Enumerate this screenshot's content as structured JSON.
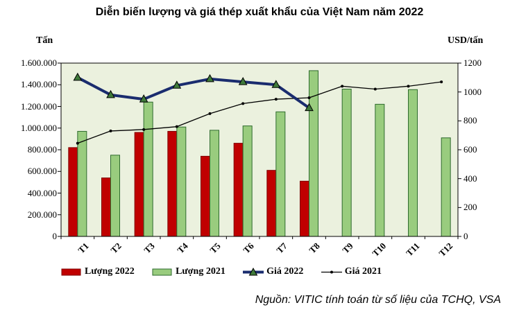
{
  "chart_data": {
    "type": "bar",
    "title": "Diễn biến lượng và giá thép xuất khẩu của Việt Nam năm 2022",
    "categories": [
      "T1",
      "T2",
      "T3",
      "T4",
      "T5",
      "T6",
      "T7",
      "T8",
      "T9",
      "T10",
      "T11",
      "T12"
    ],
    "left_axis": {
      "label": "Tấn",
      "min": 0,
      "max": 1600000,
      "tick_values": [
        0,
        200000,
        400000,
        600000,
        800000,
        1000000,
        1200000,
        1400000,
        1600000
      ],
      "tick_labels": [
        "0",
        "200.000",
        "400.000",
        "600.000",
        "800.000",
        "1.000.000",
        "1.200.000",
        "1.400.000",
        "1.600.000"
      ]
    },
    "right_axis": {
      "label": "USD/tấn",
      "min": 0,
      "max": 1200,
      "tick_values": [
        0,
        200,
        400,
        600,
        800,
        1000,
        1200
      ],
      "tick_labels": [
        "0",
        "200",
        "400",
        "600",
        "800",
        "1000",
        "1200"
      ]
    },
    "series": [
      {
        "name": "Lượng 2022",
        "type": "bar",
        "axis": "left",
        "fill": "#C00000",
        "edge": "#7F0000",
        "values": [
          820000,
          540000,
          960000,
          970000,
          740000,
          860000,
          610000,
          510000,
          null,
          null,
          null,
          null
        ]
      },
      {
        "name": "Lượng 2021",
        "type": "bar",
        "axis": "left",
        "fill": "#99CC7E",
        "edge": "#2D6A2D",
        "values": [
          970000,
          750000,
          1240000,
          1010000,
          980000,
          1020000,
          1150000,
          1530000,
          1360000,
          1220000,
          1355000,
          910000
        ]
      },
      {
        "name": "Giá 2022",
        "type": "line",
        "axis": "right",
        "color": "#1A2C6E",
        "marker": "triangle",
        "marker_color": "#3F7A3A",
        "values": [
          1100,
          980,
          950,
          1045,
          1090,
          1070,
          1050,
          890,
          null,
          null,
          null,
          null
        ]
      },
      {
        "name": "Giá 2021",
        "type": "line",
        "axis": "right",
        "color": "#000000",
        "marker": "dot",
        "marker_color": "#000000",
        "values": [
          645,
          730,
          740,
          760,
          850,
          920,
          950,
          960,
          1040,
          1020,
          1040,
          1070
        ]
      }
    ],
    "plot_bg": "#EBF1DE",
    "plot_border": "#000000",
    "source": "Nguồn: VITIC tính toán từ số liệu của TCHQ, VSA"
  }
}
